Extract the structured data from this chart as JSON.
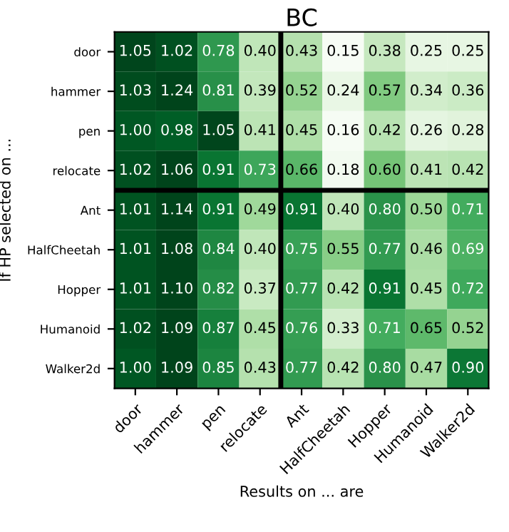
{
  "chart_data": {
    "type": "heatmap",
    "title": "BC",
    "xlabel": "Results on ... are",
    "ylabel": "If HP selected on ...",
    "categories": [
      "door",
      "hammer",
      "pen",
      "relocate",
      "Ant",
      "HalfCheetah",
      "Hopper",
      "Humanoid",
      "Walker2d"
    ],
    "y_categories": [
      "door",
      "hammer",
      "pen",
      "relocate",
      "Ant",
      "HalfCheetah",
      "Hopper",
      "Humanoid",
      "Walker2d"
    ],
    "cells": [
      [
        1.05,
        1.02,
        0.78,
        0.4,
        0.43,
        0.15,
        0.38,
        0.25,
        0.25
      ],
      [
        1.03,
        1.24,
        0.81,
        0.39,
        0.52,
        0.24,
        0.57,
        0.34,
        0.36
      ],
      [
        1.0,
        0.98,
        1.05,
        0.41,
        0.45,
        0.16,
        0.42,
        0.26,
        0.28
      ],
      [
        1.02,
        1.06,
        0.91,
        0.73,
        0.66,
        0.18,
        0.6,
        0.41,
        0.42
      ],
      [
        1.01,
        1.14,
        0.91,
        0.49,
        0.91,
        0.4,
        0.8,
        0.5,
        0.71
      ],
      [
        1.01,
        1.08,
        0.84,
        0.4,
        0.75,
        0.55,
        0.77,
        0.46,
        0.69
      ],
      [
        1.01,
        1.1,
        0.82,
        0.37,
        0.77,
        0.42,
        0.91,
        0.45,
        0.72
      ],
      [
        1.02,
        1.09,
        0.87,
        0.45,
        0.76,
        0.33,
        0.71,
        0.65,
        0.52
      ],
      [
        1.0,
        1.09,
        0.85,
        0.43,
        0.77,
        0.42,
        0.8,
        0.47,
        0.9
      ]
    ],
    "cell_labels": [
      [
        "1.05",
        "1.02",
        "0.78",
        "0.40",
        "0.43",
        "0.15",
        "0.38",
        "0.25",
        "0.25"
      ],
      [
        "1.03",
        "1.24",
        "0.81",
        "0.39",
        "0.52",
        "0.24",
        "0.57",
        "0.34",
        "0.36"
      ],
      [
        "1.00",
        "0.98",
        "1.05",
        "0.41",
        "0.45",
        "0.16",
        "0.42",
        "0.26",
        "0.28"
      ],
      [
        "1.02",
        "1.06",
        "0.91",
        "0.73",
        "0.66",
        "0.18",
        "0.60",
        "0.41",
        "0.42"
      ],
      [
        "1.01",
        "1.14",
        "0.91",
        "0.49",
        "0.91",
        "0.40",
        "0.80",
        "0.50",
        "0.71"
      ],
      [
        "1.01",
        "1.08",
        "0.84",
        "0.40",
        "0.75",
        "0.55",
        "0.77",
        "0.46",
        "0.69"
      ],
      [
        "1.01",
        "1.10",
        "0.82",
        "0.37",
        "0.77",
        "0.42",
        "0.91",
        "0.45",
        "0.72"
      ],
      [
        "1.02",
        "1.09",
        "0.87",
        "0.45",
        "0.76",
        "0.33",
        "0.71",
        "0.65",
        "0.52"
      ],
      [
        "1.00",
        "1.09",
        "0.85",
        "0.43",
        "0.77",
        "0.42",
        "0.80",
        "0.47",
        "0.90"
      ]
    ],
    "data_labels": true
  }
}
